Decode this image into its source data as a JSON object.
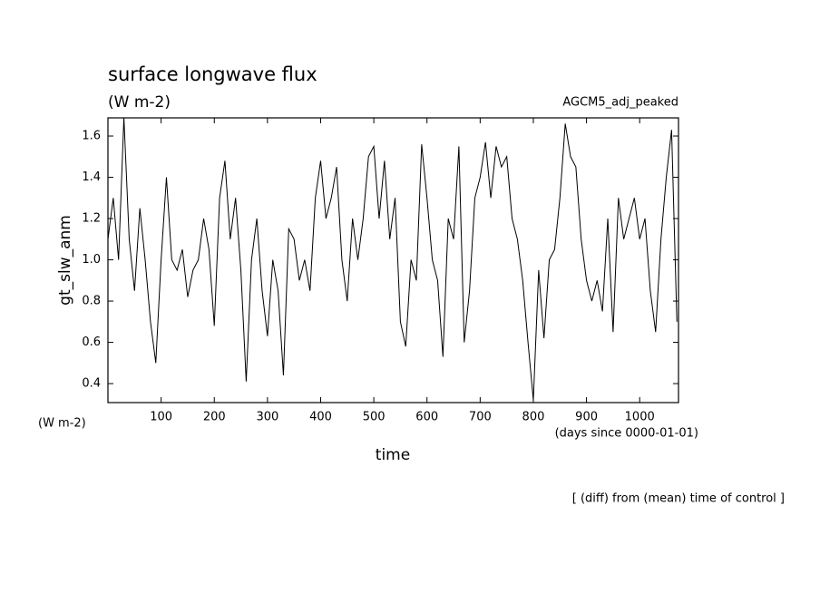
{
  "chart_data": {
    "type": "line",
    "title": "surface longwave flux",
    "subtitle": "(W m-2)",
    "annotation": "AGCM5_adj_peaked",
    "y_label": "gt_slw_anm",
    "y_unit": "(W m-2)",
    "x_label": "time",
    "x_unit": "(days since 0000-01-01)",
    "footnote": "[ (diff) from (mean) time of control ]",
    "x": [
      0,
      10,
      20,
      30,
      40,
      50,
      60,
      70,
      80,
      90,
      100,
      110,
      120,
      130,
      140,
      150,
      160,
      170,
      180,
      190,
      200,
      210,
      220,
      230,
      240,
      250,
      260,
      270,
      280,
      290,
      300,
      310,
      320,
      330,
      340,
      350,
      360,
      370,
      380,
      390,
      400,
      410,
      420,
      430,
      440,
      450,
      460,
      470,
      480,
      490,
      500,
      510,
      520,
      530,
      540,
      550,
      560,
      570,
      580,
      590,
      600,
      610,
      620,
      630,
      640,
      650,
      660,
      670,
      680,
      690,
      700,
      710,
      720,
      730,
      740,
      750,
      760,
      770,
      780,
      790,
      800,
      810,
      820,
      830,
      840,
      850,
      860,
      870,
      880,
      890,
      900,
      910,
      920,
      930,
      940,
      950,
      960,
      970,
      980,
      990,
      1000,
      1010,
      1020,
      1030,
      1040,
      1050,
      1060,
      1070
    ],
    "series": [
      {
        "name": "gt_slw_anm",
        "color": "#000000",
        "values": [
          1.1,
          1.3,
          1.0,
          1.69,
          1.1,
          0.85,
          1.25,
          1.0,
          0.7,
          0.5,
          1.0,
          1.4,
          1.0,
          0.95,
          1.05,
          0.82,
          0.95,
          1.0,
          1.2,
          1.05,
          0.68,
          1.3,
          1.48,
          1.1,
          1.3,
          0.95,
          0.41,
          1.0,
          1.2,
          0.85,
          0.63,
          1.0,
          0.85,
          0.44,
          1.15,
          1.1,
          0.9,
          1.0,
          0.85,
          1.3,
          1.48,
          1.2,
          1.3,
          1.45,
          1.0,
          0.8,
          1.2,
          1.0,
          1.2,
          1.5,
          1.55,
          1.2,
          1.48,
          1.1,
          1.3,
          0.7,
          0.58,
          1.0,
          0.9,
          1.56,
          1.3,
          1.0,
          0.9,
          0.53,
          1.2,
          1.1,
          1.55,
          0.6,
          0.85,
          1.3,
          1.4,
          1.57,
          1.3,
          1.55,
          1.45,
          1.5,
          1.2,
          1.1,
          0.9,
          0.6,
          0.32,
          0.95,
          0.62,
          1.0,
          1.05,
          1.3,
          1.66,
          1.5,
          1.45,
          1.1,
          0.9,
          0.8,
          0.9,
          0.75,
          1.2,
          0.65,
          1.3,
          1.1,
          1.2,
          1.3,
          1.1,
          1.2,
          0.85,
          0.65,
          1.1,
          1.4,
          1.63,
          0.7
        ]
      }
    ],
    "xlim": [
      0,
      1073
    ],
    "ylim": [
      0.308,
      1.688
    ],
    "xticks": [
      100,
      200,
      300,
      400,
      500,
      600,
      700,
      800,
      900,
      1000
    ],
    "yticks": [
      0.4,
      0.6,
      0.8,
      {
        "value": 1,
        "label": "1.0"
      },
      1.2,
      1.4,
      1.6
    ]
  }
}
